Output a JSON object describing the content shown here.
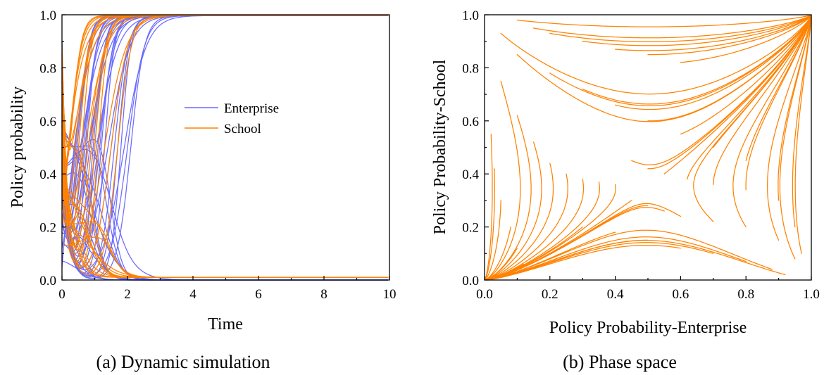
{
  "chart_data": [
    {
      "type": "line",
      "caption": "(a) Dynamic simulation",
      "xlabel": "Time",
      "ylabel": "Policy probability",
      "xlim": [
        0,
        10
      ],
      "ylim": [
        0,
        1
      ],
      "xticks": [
        "0",
        "2",
        "4",
        "6",
        "8",
        "10"
      ],
      "yticks": [
        "0.0",
        "0.2",
        "0.4",
        "0.6",
        "0.8",
        "1.0"
      ],
      "legend_position": "center",
      "series": [
        {
          "name": "Enterprise",
          "color": "#6b6bff",
          "upper_crossing_times": [
            0.3,
            0.35,
            0.4,
            0.45,
            0.5,
            0.55,
            0.6,
            0.65,
            0.7,
            0.75,
            0.8,
            0.85,
            0.9,
            0.95,
            1.0,
            1.05,
            1.1,
            1.15,
            1.2,
            1.3,
            1.4,
            1.5,
            1.6,
            1.7,
            1.8,
            1.9,
            2.0,
            2.1
          ],
          "upper_start_values": [
            0.05,
            0.12,
            0.18,
            0.22,
            0.25,
            0.28,
            0.3,
            0.32,
            0.34,
            0.36,
            0.38,
            0.4,
            0.42,
            0.44,
            0.46,
            0.48,
            0.5,
            0.52,
            0.55,
            0.58,
            0.6,
            0.62,
            0.66,
            0.7,
            0.75,
            0.8,
            0.85,
            0.9
          ],
          "upper_final_value": 1.0,
          "lower_decay_times": [
            0.3,
            0.4,
            0.5,
            0.6,
            0.7,
            0.8,
            0.9,
            1.0,
            1.1,
            1.2,
            1.3,
            1.5,
            1.7
          ],
          "lower_start_values": [
            0.1,
            0.15,
            0.2,
            0.25,
            0.3,
            0.35,
            0.4,
            0.45,
            0.5,
            0.55,
            0.6,
            0.5,
            0.45
          ],
          "lower_final_value": 0.0
        },
        {
          "name": "School",
          "color": "#ff8200",
          "upper_crossing_times": [
            0.05,
            0.1,
            0.15,
            0.2,
            0.25,
            0.3,
            0.35,
            0.4,
            0.5,
            0.6,
            0.7,
            0.8,
            0.9,
            1.0,
            1.1,
            1.3,
            1.5,
            1.7
          ],
          "upper_start_values": [
            0.2,
            0.3,
            0.4,
            0.5,
            0.6,
            0.7,
            0.8,
            0.35,
            0.45,
            0.55,
            0.65,
            0.75,
            0.5,
            0.4,
            0.6,
            0.7,
            0.8,
            0.9
          ],
          "upper_final_value": 1.0,
          "lower_decay_times": [
            0.15,
            0.25,
            0.35,
            0.45,
            0.55,
            0.65,
            0.8,
            0.95,
            1.1,
            1.25,
            1.4,
            1.6
          ],
          "lower_start_values": [
            0.55,
            0.45,
            0.35,
            0.25,
            0.5,
            0.4,
            0.3,
            0.45,
            0.2,
            0.35,
            0.25,
            0.15
          ],
          "lower_final_value": 0.01
        }
      ]
    },
    {
      "type": "line",
      "caption": "(b) Phase space",
      "xlabel": "Policy Probability-Enterprise",
      "ylabel": "Policy Probability-School",
      "xlim": [
        0,
        1
      ],
      "ylim": [
        0,
        1
      ],
      "xticks": [
        "0.0",
        "0.2",
        "0.4",
        "0.6",
        "0.8",
        "1.0"
      ],
      "yticks": [
        "0.0",
        "0.2",
        "0.4",
        "0.6",
        "0.8",
        "1.0"
      ],
      "color": "#ff8200",
      "saddle_point": [
        0.5,
        0.35
      ],
      "attractors": [
        [
          0,
          0
        ],
        [
          1,
          1
        ]
      ],
      "trajectory_start_points": [
        [
          0.1,
          0.98
        ],
        [
          0.15,
          0.95
        ],
        [
          0.2,
          0.93
        ],
        [
          0.3,
          0.9
        ],
        [
          0.4,
          0.87
        ],
        [
          0.5,
          0.85
        ],
        [
          0.6,
          0.82
        ],
        [
          0.05,
          0.93
        ],
        [
          0.1,
          0.85
        ],
        [
          0.2,
          0.78
        ],
        [
          0.3,
          0.72
        ],
        [
          0.4,
          0.66
        ],
        [
          0.5,
          0.6
        ],
        [
          0.6,
          0.55
        ],
        [
          0.7,
          0.5
        ],
        [
          0.8,
          0.45
        ],
        [
          0.45,
          0.45
        ],
        [
          0.5,
          0.42
        ],
        [
          0.55,
          0.4
        ],
        [
          0.62,
          0.38
        ],
        [
          0.7,
          0.36
        ],
        [
          0.8,
          0.34
        ],
        [
          0.9,
          0.3
        ],
        [
          0.95,
          0.2
        ],
        [
          0.97,
          0.1
        ],
        [
          0.05,
          0.75
        ],
        [
          0.1,
          0.62
        ],
        [
          0.15,
          0.52
        ],
        [
          0.2,
          0.44
        ],
        [
          0.25,
          0.4
        ],
        [
          0.3,
          0.38
        ],
        [
          0.35,
          0.37
        ],
        [
          0.4,
          0.36
        ],
        [
          0.45,
          0.3
        ],
        [
          0.5,
          0.28
        ],
        [
          0.55,
          0.26
        ],
        [
          0.6,
          0.24
        ],
        [
          0.7,
          0.22
        ],
        [
          0.8,
          0.2
        ],
        [
          0.9,
          0.15
        ],
        [
          0.95,
          0.08
        ],
        [
          0.3,
          0.2
        ],
        [
          0.4,
          0.18
        ],
        [
          0.5,
          0.15
        ],
        [
          0.6,
          0.12
        ],
        [
          0.7,
          0.1
        ],
        [
          0.8,
          0.07
        ],
        [
          0.88,
          0.04
        ],
        [
          0.92,
          0.02
        ],
        [
          0.02,
          0.55
        ],
        [
          0.03,
          0.42
        ],
        [
          0.05,
          0.3
        ],
        [
          0.08,
          0.2
        ],
        [
          0.1,
          0.12
        ],
        [
          0.12,
          0.06
        ]
      ]
    }
  ]
}
